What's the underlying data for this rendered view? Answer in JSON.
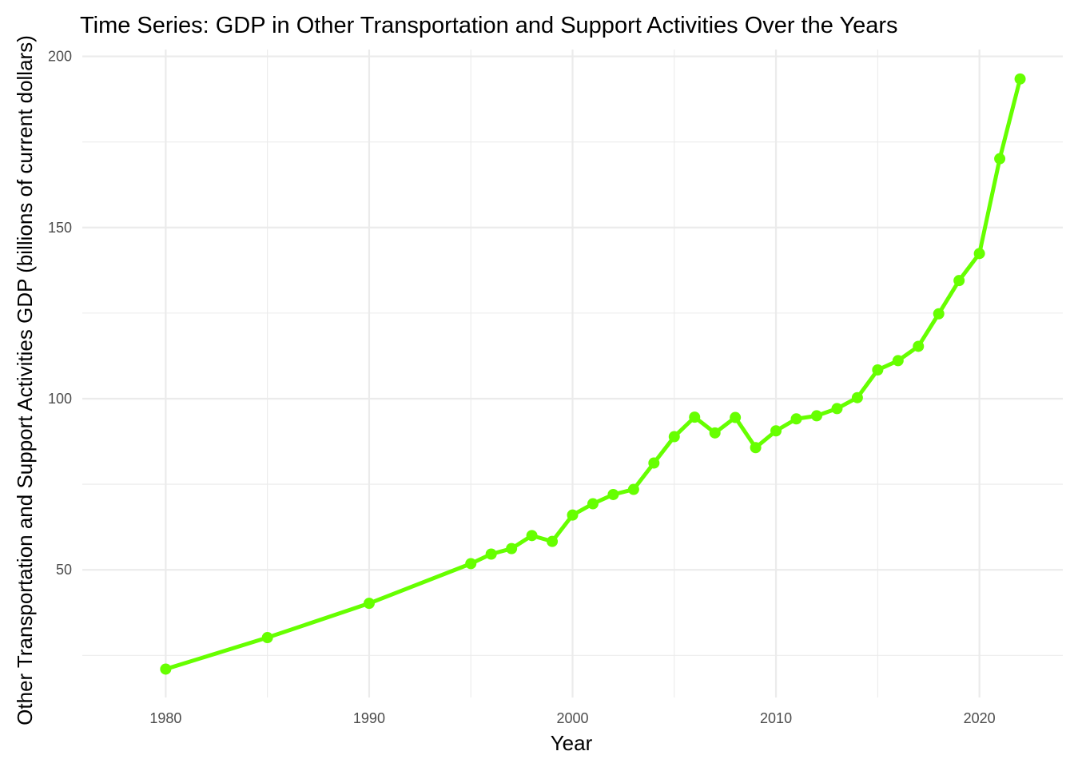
{
  "chart_data": {
    "type": "line",
    "title": "Time Series: GDP in Other Transportation and Support Activities Over the Years",
    "xlabel": "Year",
    "ylabel": "Other Transportation and Support Activities GDP (billions of current dollars)",
    "xlim": [
      1975.9,
      2024.1
    ],
    "ylim": [
      12.7,
      202
    ],
    "x_ticks": [
      1980,
      1990,
      2000,
      2010,
      2020
    ],
    "y_ticks": [
      50,
      100,
      150,
      200
    ],
    "x_minor": [
      1985,
      1995,
      2005,
      2015
    ],
    "y_minor": [
      25,
      75,
      125,
      175
    ],
    "grid": true,
    "legend": "none",
    "line_color": "#66ff00",
    "series": [
      {
        "x": [
          1980,
          1985,
          1990,
          1995,
          1996,
          1997,
          1998,
          1999,
          2000,
          2001,
          2002,
          2003,
          2004,
          2005,
          2006,
          2007,
          2008,
          2009,
          2010,
          2011,
          2012,
          2013,
          2014,
          2015,
          2016,
          2017,
          2018,
          2019,
          2020,
          2021,
          2022
        ],
        "values": [
          21.0,
          30.2,
          40.2,
          51.8,
          54.6,
          56.2,
          60.0,
          58.3,
          66.0,
          69.3,
          72.0,
          73.5,
          81.2,
          88.9,
          94.6,
          90.0,
          94.5,
          85.7,
          90.6,
          94.1,
          95.0,
          97.1,
          100.3,
          108.4,
          111.1,
          115.3,
          124.8,
          134.5,
          142.4,
          170.1,
          193.4
        ]
      }
    ]
  }
}
